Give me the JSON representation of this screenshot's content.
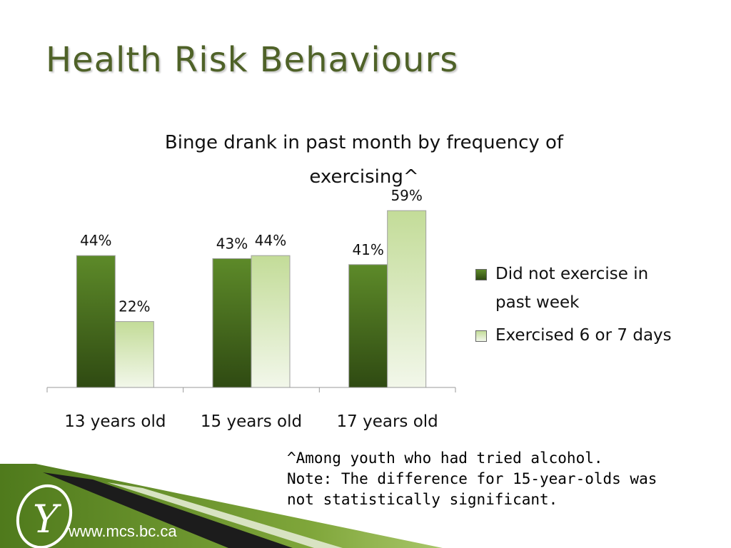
{
  "slide": {
    "title": "Health Risk Behaviours",
    "footnote_lines": [
      "^Among youth who had tried alcohol.",
      "Note: The difference for 15-year-olds was",
      "not statistically significant."
    ],
    "footer_url": "www.mcs.bc.ca",
    "logo_letter": "Y"
  },
  "colors": {
    "title": "#4f6228",
    "series_dark_top": "#5d8a29",
    "series_dark_bottom": "#2f4a12",
    "series_light_top": "#c3dc98",
    "series_light_bottom": "#f2f7ea",
    "footer_green": "#6f9a2e"
  },
  "chart_data": {
    "type": "bar",
    "title_lines": [
      "Binge drank in past month by frequency of",
      "exercising^"
    ],
    "categories": [
      "13 years old",
      "15 years old",
      "17 years old"
    ],
    "series": [
      {
        "name": "Did not exercise in past week",
        "legend_lines": [
          "Did not exercise in",
          "past week"
        ],
        "values": [
          44,
          43,
          41
        ],
        "labels": [
          "44%",
          "43%",
          "41%"
        ]
      },
      {
        "name": "Exercised 6 or 7 days",
        "legend_lines": [
          "Exercised 6 or 7 days"
        ],
        "values": [
          22,
          44,
          59
        ],
        "labels": [
          "22%",
          "44%",
          "59%"
        ]
      }
    ],
    "ylim": [
      0,
      60
    ],
    "grid": false,
    "legend_position": "right"
  }
}
